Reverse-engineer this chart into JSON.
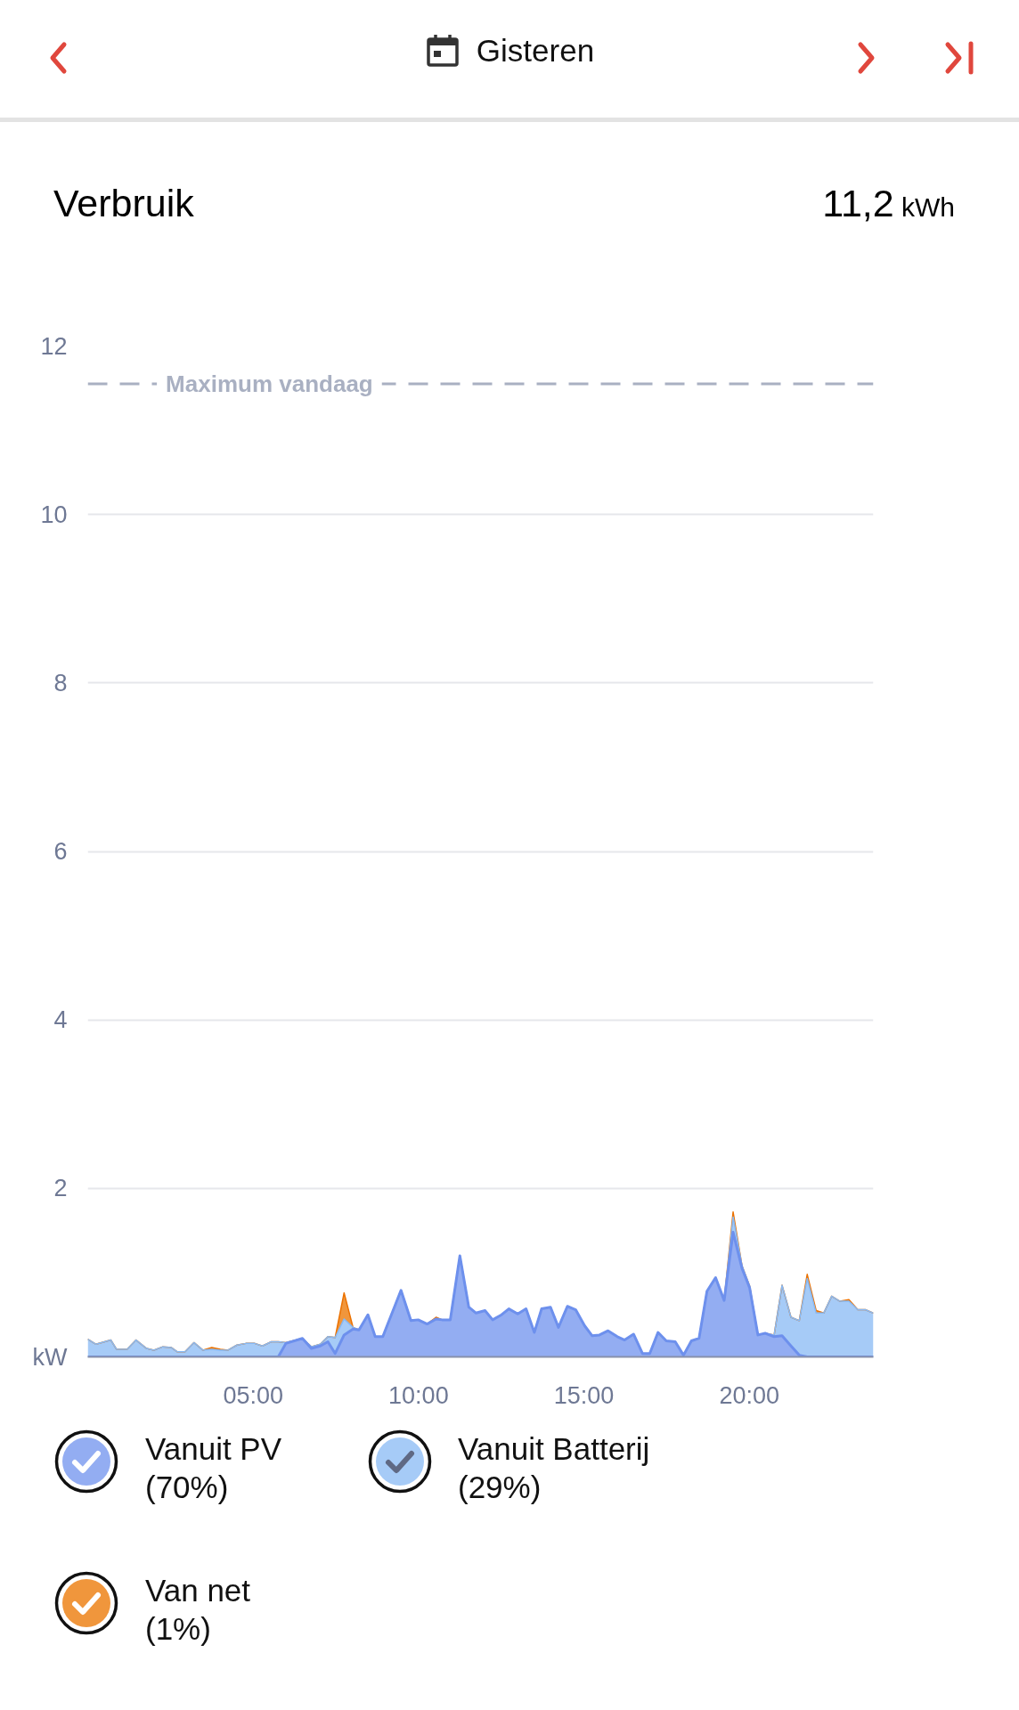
{
  "chart_data": {
    "type": "area",
    "title": "Verbruik",
    "annotations": [
      "Gisteren",
      "11,2 kWh"
    ],
    "stacked": true,
    "x": [
      0.0,
      0.25,
      0.7,
      0.87,
      1.19,
      1.46,
      1.78,
      2.0,
      2.27,
      2.53,
      2.71,
      2.94,
      3.21,
      3.48,
      3.75,
      4.01,
      4.24,
      4.51,
      4.78,
      5.05,
      5.28,
      5.55,
      5.76,
      5.99,
      6.49,
      6.76,
      7.03,
      7.26,
      7.48,
      7.75,
      8.02,
      8.2,
      8.47,
      8.69,
      8.92,
      9.47,
      9.77,
      9.99,
      10.26,
      10.53,
      10.71,
      10.96,
      11.25,
      11.52,
      11.74,
      12.01,
      12.24,
      12.51,
      12.73,
      13.0,
      13.25,
      13.5,
      13.72,
      13.99,
      14.23,
      14.5,
      14.75,
      15.02,
      15.25,
      15.47,
      15.73,
      16.01,
      16.23,
      16.5,
      16.77,
      16.99,
      17.24,
      17.49,
      17.76,
      18.01,
      18.25,
      18.48,
      18.72,
      18.98,
      19.24,
      19.51,
      19.78,
      20.01,
      20.26,
      20.48,
      20.75,
      20.99,
      21.26,
      21.51,
      21.75,
      22.02,
      22.25,
      22.49,
      22.74,
      23.01,
      23.28,
      23.51,
      23.75
    ],
    "series": [
      {
        "name": "Vanuit PV (70%)",
        "color": "#93adf2",
        "values": [
          0,
          0,
          0,
          0,
          0,
          0,
          0,
          0,
          0,
          0,
          0,
          0,
          0,
          0,
          0,
          0,
          0,
          0,
          0,
          0,
          0,
          0,
          0,
          0.16,
          0.22,
          0.1,
          0.13,
          0.18,
          0.04,
          0.26,
          0.33,
          0.32,
          0.5,
          0.24,
          0.24,
          0.79,
          0.43,
          0.44,
          0.39,
          0.45,
          0.44,
          0.44,
          1.2,
          0.59,
          0.52,
          0.55,
          0.44,
          0.5,
          0.57,
          0.51,
          0.57,
          0.29,
          0.57,
          0.59,
          0.35,
          0.6,
          0.56,
          0.37,
          0.25,
          0.26,
          0.31,
          0.24,
          0.2,
          0.27,
          0.04,
          0.04,
          0.29,
          0.19,
          0.18,
          0.02,
          0.19,
          0.22,
          0.78,
          0.94,
          0.67,
          1.48,
          1.05,
          0.82,
          0.26,
          0.28,
          0.24,
          0.25,
          0.13,
          0.02,
          0,
          0,
          0,
          0,
          0,
          0,
          0,
          0,
          0
        ]
      },
      {
        "name": "Vanuit Batterij (29%)",
        "color": "#a6cbf7",
        "values": [
          0.21,
          0.15,
          0.2,
          0.09,
          0.09,
          0.2,
          0.1,
          0.08,
          0.12,
          0.11,
          0.06,
          0.06,
          0.17,
          0.08,
          0.09,
          0.08,
          0.08,
          0.14,
          0.16,
          0.16,
          0.13,
          0.18,
          0.18,
          0.01,
          0,
          0.02,
          0.02,
          0.06,
          0.19,
          0.19,
          0.02,
          0,
          0,
          0,
          0,
          0,
          0,
          0,
          0,
          0,
          0,
          0,
          0,
          0,
          0,
          0,
          0,
          0,
          0,
          0,
          0,
          0,
          0,
          0,
          0,
          0,
          0,
          0,
          0,
          0,
          0,
          0,
          0,
          0,
          0,
          0,
          0,
          0,
          0,
          0,
          0,
          0,
          0,
          0,
          0,
          0.18,
          0.03,
          0.02,
          0,
          0,
          0.02,
          0.6,
          0.34,
          0.41,
          0.93,
          0.52,
          0.52,
          0.72,
          0.66,
          0.66,
          0.56,
          0.56,
          0.52
        ]
      },
      {
        "name": "Van net (1%)",
        "color": "#f0963c",
        "values": [
          0,
          0,
          0,
          0,
          0,
          0,
          0,
          0,
          0,
          0,
          0,
          0,
          0,
          0,
          0.02,
          0.01,
          0,
          0,
          0,
          0,
          0,
          0,
          0,
          0,
          0,
          0,
          0,
          0,
          0,
          0.31,
          0,
          0,
          0,
          0,
          0,
          0,
          0,
          0,
          0,
          0.02,
          0,
          0,
          0,
          0,
          0,
          0,
          0,
          0,
          0,
          0,
          0,
          0,
          0,
          0,
          0,
          0,
          0,
          0,
          0,
          0,
          0,
          0,
          0,
          0,
          0,
          0,
          0,
          0,
          0,
          0,
          0,
          0,
          0,
          0,
          0,
          0.06,
          0,
          0,
          0,
          0,
          0,
          0,
          0,
          0,
          0.05,
          0.03,
          0,
          0,
          0,
          0.02,
          0,
          0,
          0
        ]
      }
    ],
    "xlim": [
      0,
      23.75
    ],
    "xticks": [
      {
        "value": 5,
        "label": "05:00"
      },
      {
        "value": 10,
        "label": "10:00"
      },
      {
        "value": 15,
        "label": "15:00"
      },
      {
        "value": 20,
        "label": "20:00"
      }
    ],
    "ylim": [
      0,
      12
    ],
    "yticks": [
      {
        "value": 0,
        "label": "kW"
      },
      2,
      4,
      6,
      8,
      10,
      12
    ],
    "grid": "y",
    "legend": "bottom",
    "ref_lines": [
      {
        "axis": "y",
        "value": 11.55,
        "label": "Maximum vandaag",
        "color": "#a9b0c2",
        "line_style": "dashed"
      }
    ]
  }
}
